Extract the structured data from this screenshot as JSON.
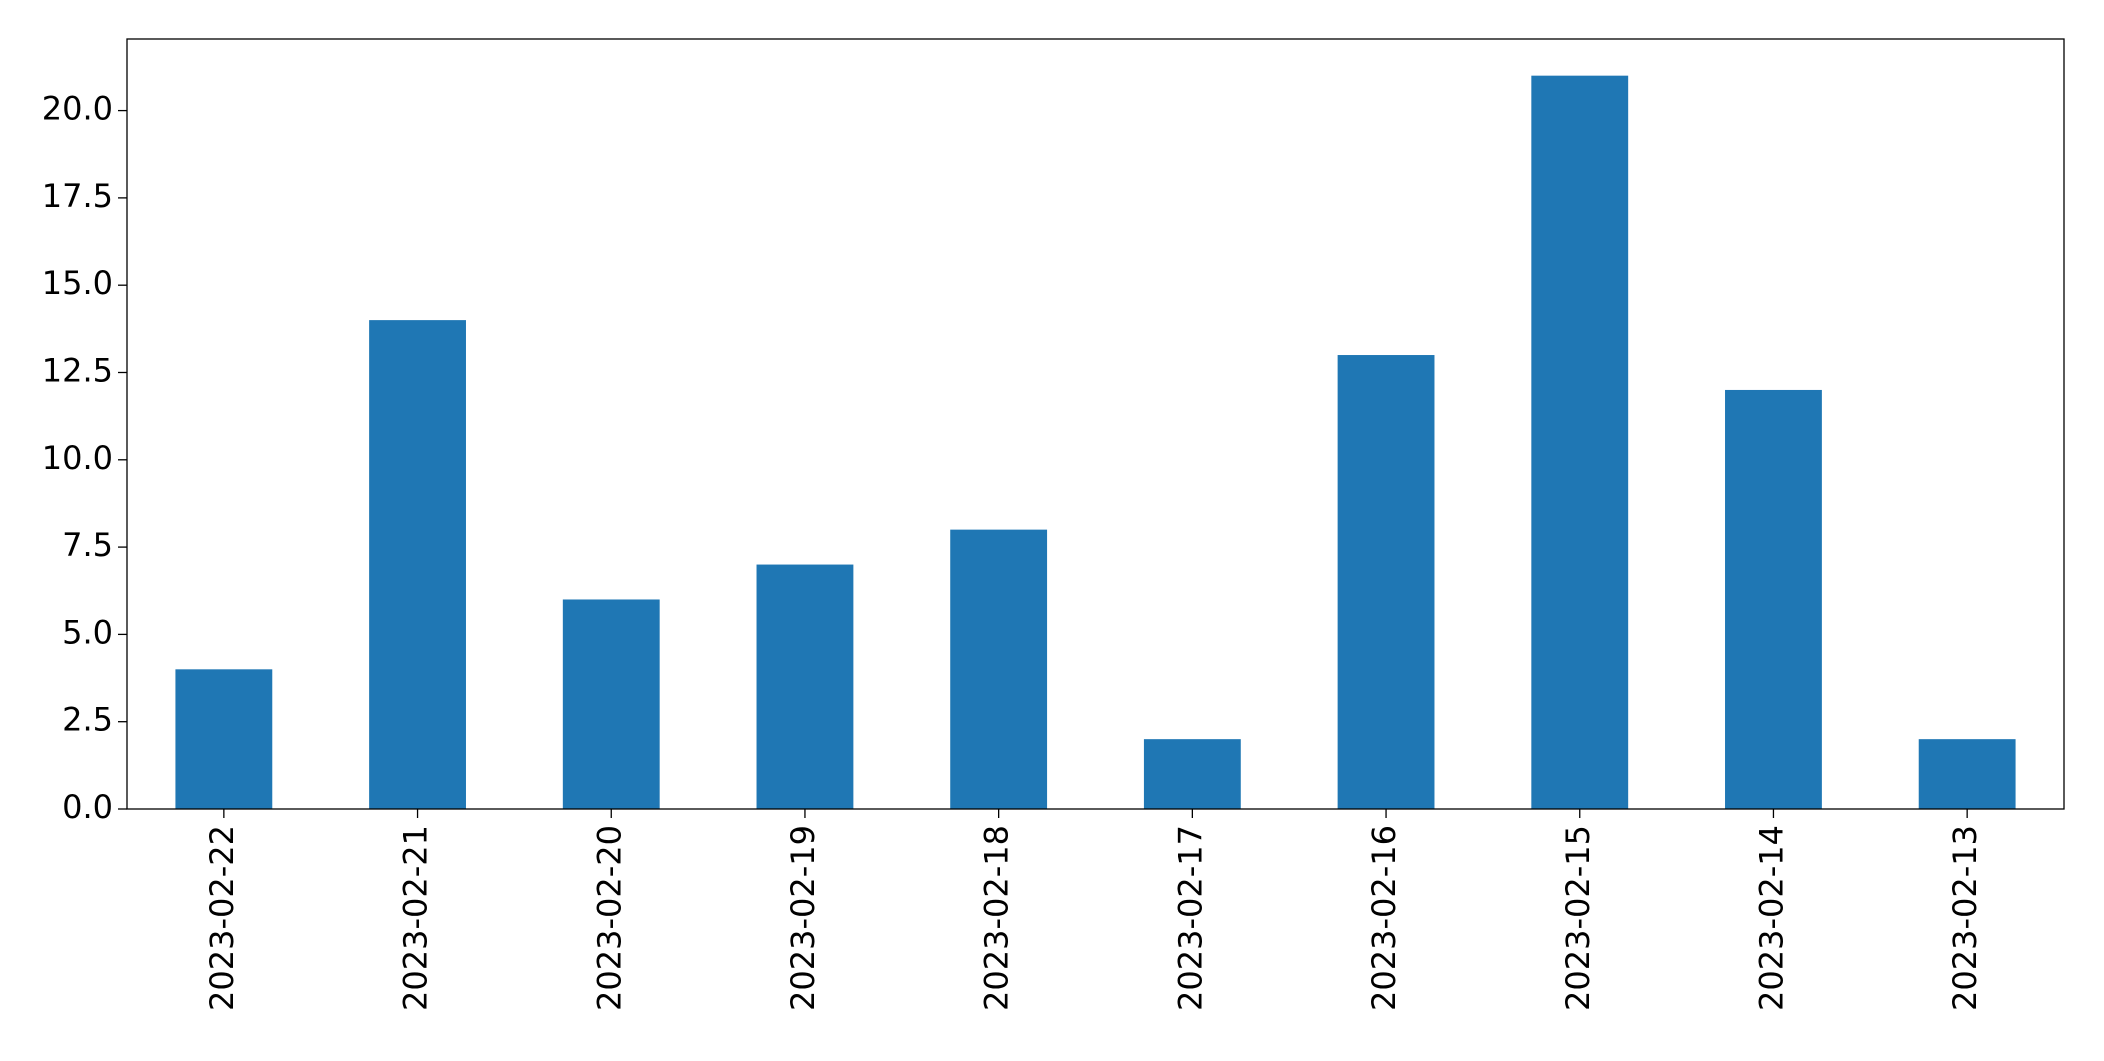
{
  "chart_data": {
    "type": "bar",
    "categories": [
      "2023-02-22",
      "2023-02-21",
      "2023-02-20",
      "2023-02-19",
      "2023-02-18",
      "2023-02-17",
      "2023-02-16",
      "2023-02-15",
      "2023-02-14",
      "2023-02-13"
    ],
    "values": [
      4,
      14,
      6,
      7,
      8,
      2,
      13,
      21,
      12,
      2
    ],
    "color": "#1f77b4",
    "ylim": [
      0,
      22.05
    ],
    "yticks": [
      {
        "value": 0,
        "label": "0.0"
      },
      2.5,
      {
        "value": 5,
        "label": "5.0"
      },
      7.5,
      {
        "value": 10,
        "label": "10.0"
      },
      12.5,
      {
        "value": 15,
        "label": "15.0"
      },
      17.5,
      {
        "value": 20,
        "label": "20.0"
      }
    ],
    "grid": false
  }
}
